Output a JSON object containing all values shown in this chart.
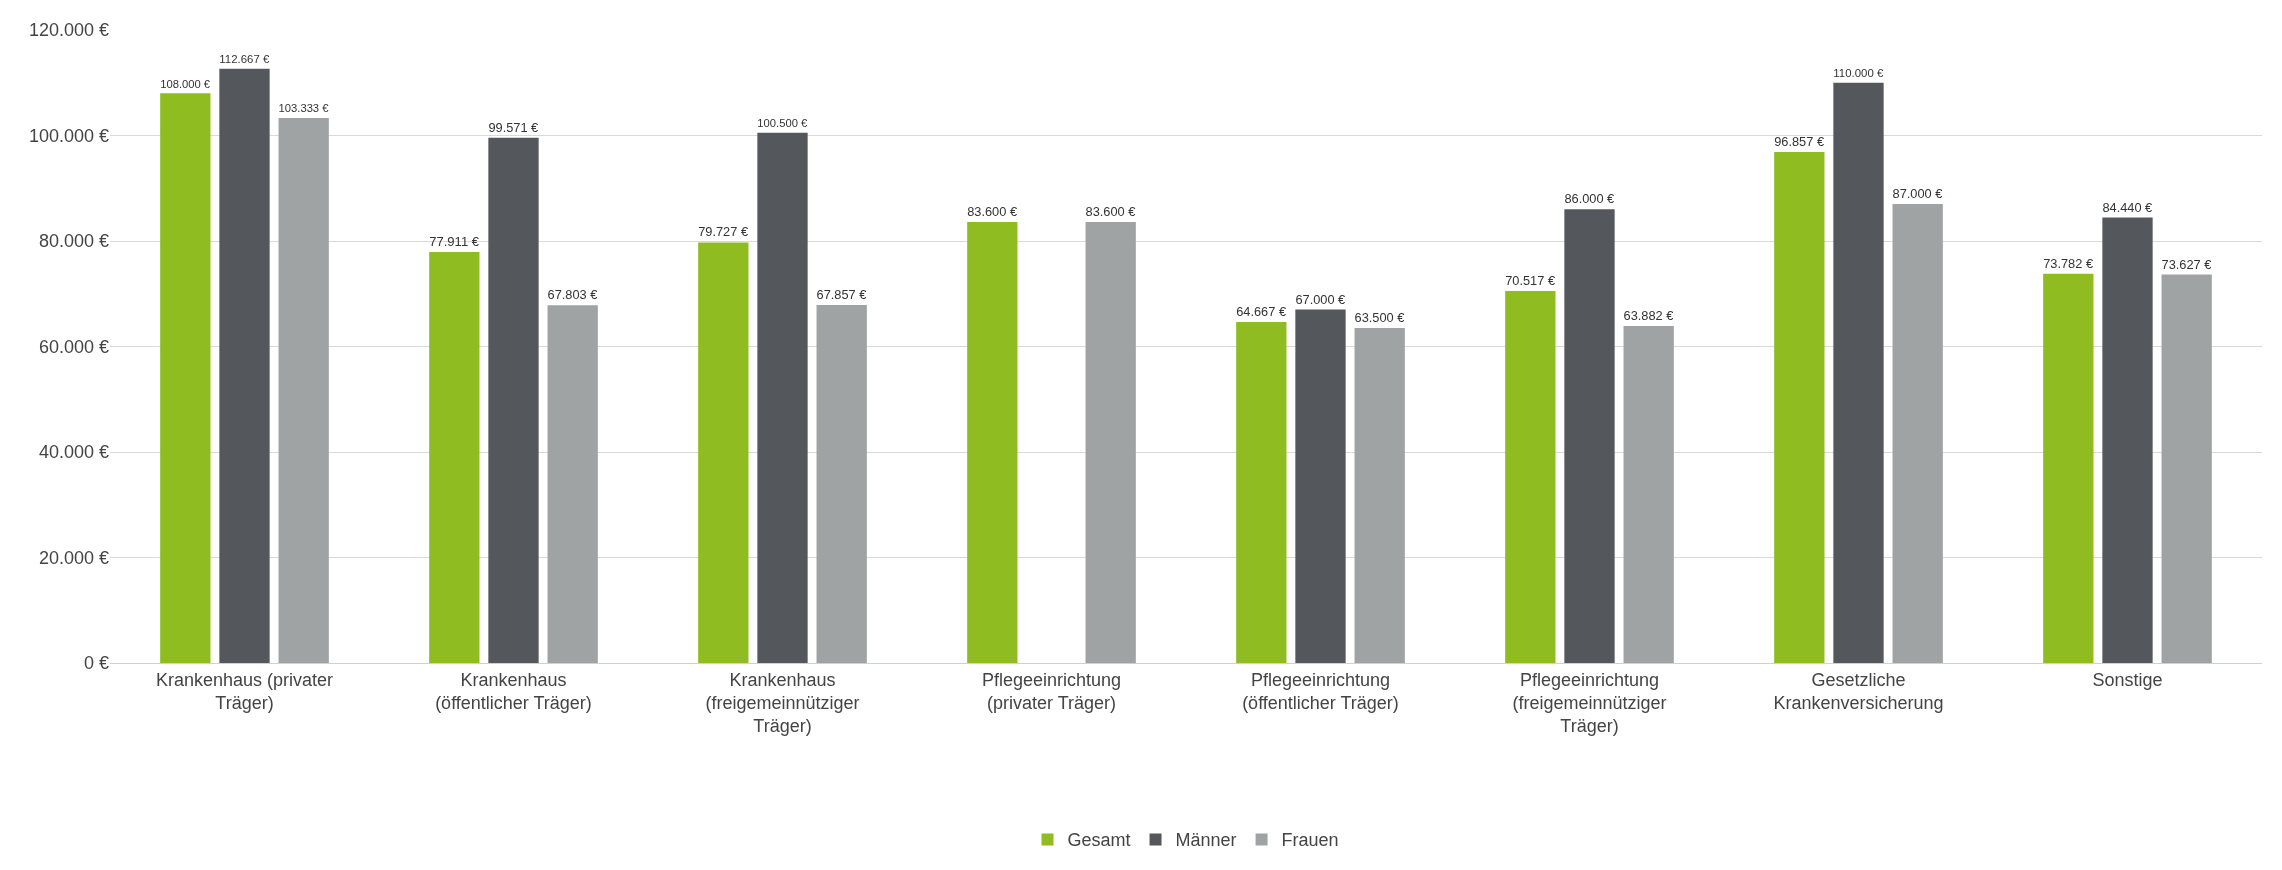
{
  "chart_data": {
    "type": "bar",
    "categories": [
      "Krankenhaus (privater Träger)",
      "Krankenhaus (öffentlicher Träger)",
      "Krankenhaus (freigemeinnütziger Träger)",
      "Pflegeeinrichtung (privater Träger)",
      "Pflegeeinrichtung (öffentlicher Träger)",
      "Pflegeeinrichtung (freigemeinnütziger Träger)",
      "Gesetzliche Krankenversicherung",
      "Sonstige"
    ],
    "series": [
      {
        "name": "Gesamt",
        "color": "#8fbc21",
        "values": [
          108000,
          77911,
          79727,
          83600,
          64667,
          70517,
          96857,
          73782
        ],
        "value_labels": [
          "108.000 €",
          "77.911 €",
          "79.727 €",
          "83.600 €",
          "64.667 €",
          "70.517 €",
          "96.857 €",
          "73.782 €"
        ]
      },
      {
        "name": "Männer",
        "color": "#54575b",
        "values": [
          112667,
          99571,
          100500,
          null,
          67000,
          86000,
          110000,
          84440
        ],
        "value_labels": [
          "112.667 €",
          "99.571 €",
          "100.500 €",
          null,
          "67.000 €",
          "86.000 €",
          "110.000 €",
          "84.440 €"
        ]
      },
      {
        "name": "Frauen",
        "color": "#a0a3a3",
        "values": [
          103333,
          67803,
          67857,
          83600,
          63500,
          63882,
          87000,
          73627
        ],
        "value_labels": [
          "103.333 €",
          "67.803 €",
          "67.857 €",
          "83.600 €",
          "63.500 €",
          "63.882 €",
          "87.000 €",
          "73.627 €"
        ]
      }
    ],
    "ylim": [
      0,
      120000
    ],
    "yticks": [
      {
        "value": 0,
        "label": "0 €"
      },
      {
        "value": 20000,
        "label": "20.000 €"
      },
      {
        "value": 40000,
        "label": "40.000 €"
      },
      {
        "value": 60000,
        "label": "60.000 €"
      },
      {
        "value": 80000,
        "label": "80.000 €"
      },
      {
        "value": 100000,
        "label": "100.000 €"
      },
      {
        "value": 120000,
        "label": "120.000 €"
      }
    ],
    "grid": "y",
    "legend": "bottom"
  }
}
